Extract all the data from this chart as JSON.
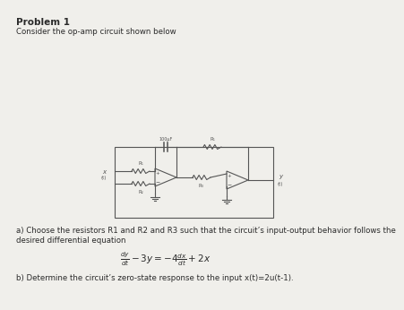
{
  "title": "Problem 1",
  "line1": "Consider the op-amp circuit shown below",
  "part_a_label": "a) Choose the resistors R1 and R2 and R3 such that the circuit’s input-output behavior follows the",
  "part_a_label2": "desired differential equation",
  "equation": "$\\frac{dy}{dt} - 3y = -4\\frac{dx}{dt} + 2x$",
  "part_b_label": "b) Determine the circuit’s zero-state response to the input x(t)=2u(t-1).",
  "bg_color": "#f0efeb",
  "text_color": "#2a2a2a",
  "circuit_color": "#555555",
  "title_fontsize": 7.5,
  "body_fontsize": 6.2,
  "eq_fontsize": 7.5,
  "cap_label": "100μF",
  "r1_label": "R₁",
  "r2_label": "R₂",
  "r3_label": "R₃",
  "r_top_label": "R₁",
  "r_mid_label": "R₂",
  "x_label": "x\n(t)",
  "y_label": "y\n(t)"
}
